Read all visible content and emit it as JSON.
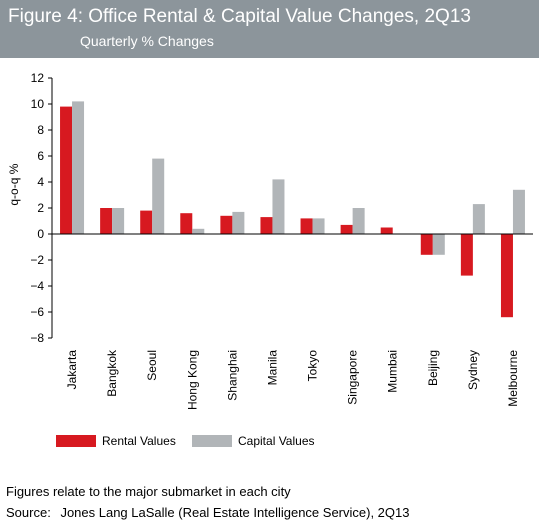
{
  "header": {
    "title": "Figure 4: Office Rental & Capital Value Changes, 2Q13",
    "subtitle": "Quarterly % Changes"
  },
  "chart_data": {
    "type": "bar",
    "ylabel": "q-o-q %",
    "xlabel": "",
    "ylim": [
      -8,
      12
    ],
    "yticks": [
      "12",
      "10",
      "8",
      "6",
      "4",
      "2",
      "0",
      "−2",
      "−4",
      "−6",
      "−8"
    ],
    "grid": false,
    "legend_position": "bottom",
    "categories": [
      "Jakarta",
      "Bangkok",
      "Seoul",
      "Hong Kong",
      "Shanghai",
      "Manila",
      "Tokyo",
      "Singapore",
      "Mumbai",
      "Beijing",
      "Sydney",
      "Melbourne"
    ],
    "series": [
      {
        "name": "Rental Values",
        "color": "#d71920",
        "values": [
          9.8,
          2.0,
          1.8,
          1.6,
          1.4,
          1.3,
          1.2,
          0.7,
          0.5,
          -1.6,
          -3.2,
          -6.4
        ]
      },
      {
        "name": "Capital Values",
        "color": "#b1b5b8",
        "values": [
          10.2,
          2.0,
          5.8,
          0.4,
          1.7,
          4.2,
          1.2,
          2.0,
          0.0,
          -1.6,
          2.3,
          3.4
        ]
      }
    ]
  },
  "footer": {
    "note": "Figures relate to the major submarket in each city",
    "source_label": "Source:",
    "source_text": "Jones Lang LaSalle (Real Estate Intelligence Service), 2Q13"
  }
}
